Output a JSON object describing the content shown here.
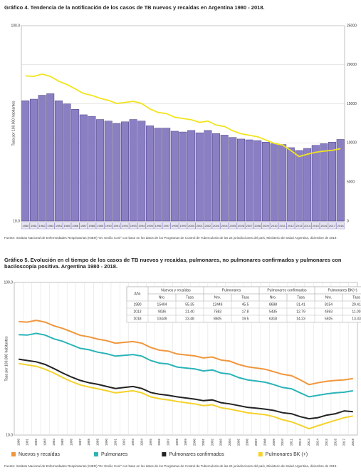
{
  "chart_data": [
    {
      "type": "bar",
      "title": "Gráfico 4. Tendencia de la notificación de los casos de TB nuevos y recaídas en Argentina 1980 - 2018.",
      "ylabel": "Tasa por 100.000 habitantes",
      "categories": [
        "1980",
        "1981",
        "1982",
        "1983",
        "1984",
        "1985",
        "1986",
        "1987",
        "1988",
        "1989",
        "1990",
        "1991",
        "1992",
        "1993",
        "1994",
        "1995",
        "1996",
        "1997",
        "1998",
        "1999",
        "2000",
        "2001",
        "2002",
        "2003",
        "2004",
        "2005",
        "2006",
        "2007",
        "2008",
        "2009",
        "2010",
        "2011",
        "2012",
        "2013",
        "2014",
        "2015",
        "2016",
        "2017",
        "2018"
      ],
      "ylim": [
        10,
        100
      ],
      "ylog": true,
      "yticks": [
        {
          "value": 10,
          "label": "10.0"
        },
        {
          "value": 100,
          "label": "100.0"
        }
      ],
      "y2lim": [
        0,
        25000
      ],
      "y2ticks": [
        0,
        5000,
        10000,
        15000,
        20000,
        25000
      ],
      "grid": true,
      "series": [
        {
          "type": "bar",
          "axis": "y2",
          "color": "#8b7fc4",
          "values": [
            15404,
            15600,
            16100,
            16300,
            15400,
            15000,
            14300,
            13600,
            13400,
            13000,
            12800,
            12500,
            12700,
            13000,
            12800,
            12200,
            11900,
            11900,
            11500,
            11400,
            11600,
            11300,
            11600,
            11200,
            11000,
            10700,
            10500,
            10400,
            10300,
            10100,
            9900,
            9800,
            9400,
            9036,
            9300,
            9700,
            9900,
            10100,
            10449
          ]
        },
        {
          "type": "line",
          "color": "#f2e41d",
          "values": [
            55.35,
            55.0,
            56.5,
            55.0,
            52.0,
            50.0,
            47.5,
            45.0,
            44.0,
            42.5,
            41.5,
            40.0,
            40.5,
            41.0,
            40.0,
            37.5,
            36.0,
            35.5,
            34.0,
            33.5,
            33.0,
            32.0,
            32.5,
            31.0,
            30.5,
            29.0,
            28.0,
            27.5,
            27.0,
            26.0,
            25.0,
            24.5,
            23.0,
            21.4,
            22.0,
            22.5,
            22.8,
            23.0,
            23.48
          ]
        }
      ],
      "source": "Fuente: Instituto Nacional de Enfermedades Respiratorias (INER) \"Dr. Emilio Coni\" con base en los datos de los Programas de Control de Tuberculosis de las 24 jurisdicciones del país, Ministerio de Salud Argentina, diciembre de 2019."
    },
    {
      "type": "line",
      "title": "Gráfico 5. Evolución en el tiempo de los casos de TB nuevos y recaídas, pulmonares, no pulmonares confirmados y pulmonares con baciloscopía positiva. Argentina 1980 - 2018.",
      "ylabel": "Tasa por 100.000 habitantes",
      "categories": [
        "1980",
        "1981",
        "1982",
        "1983",
        "1984",
        "1985",
        "1986",
        "1987",
        "1988",
        "1989",
        "1990",
        "1991",
        "1992",
        "1993",
        "1994",
        "1995",
        "1996",
        "1997",
        "1998",
        "1999",
        "2000",
        "2001",
        "2002",
        "2003",
        "2004",
        "2005",
        "2006",
        "2007",
        "2008",
        "2009",
        "2010",
        "2011",
        "2012",
        "2013",
        "2014",
        "2015",
        "2016",
        "2017",
        "2018"
      ],
      "ylim": [
        10,
        100
      ],
      "ylog": true,
      "yticks": [
        {
          "value": 10,
          "label": "10.0"
        },
        {
          "value": 100,
          "label": "100.0"
        }
      ],
      "grid": true,
      "legend": "bottom",
      "series": [
        {
          "name": "Nuevos y recaídas",
          "color": "#f0963c",
          "values": [
            55.35,
            55.0,
            56.5,
            55.0,
            52.0,
            50.0,
            47.5,
            45.0,
            44.0,
            42.5,
            41.5,
            40.0,
            40.5,
            41.0,
            40.0,
            37.5,
            36.0,
            35.5,
            34.0,
            33.5,
            33.0,
            32.0,
            32.5,
            31.0,
            30.5,
            29.0,
            28.0,
            27.5,
            27.0,
            26.0,
            25.0,
            24.5,
            23.0,
            21.4,
            22.0,
            22.5,
            22.8,
            23.0,
            23.48
          ]
        },
        {
          "name": "Pulmonares",
          "color": "#2ab3b8",
          "values": [
            45.5,
            45.2,
            46.4,
            45.2,
            42.7,
            41.1,
            39.0,
            37.0,
            36.2,
            34.9,
            34.1,
            32.9,
            33.3,
            33.7,
            32.9,
            30.8,
            29.6,
            29.2,
            27.9,
            27.5,
            27.1,
            26.3,
            26.7,
            25.5,
            25.1,
            23.8,
            23.0,
            22.6,
            22.2,
            21.4,
            20.5,
            20.1,
            18.9,
            17.8,
            18.2,
            18.6,
            18.9,
            19.1,
            19.5
          ]
        },
        {
          "name": "Pulmonares confirmados",
          "color": "#222222",
          "values": [
            31.41,
            30.8,
            30.2,
            29.0,
            27.3,
            25.5,
            24.0,
            22.8,
            22.0,
            21.5,
            20.8,
            20.2,
            20.5,
            20.8,
            20.2,
            19.0,
            18.5,
            18.2,
            17.8,
            17.5,
            17.2,
            16.8,
            17.0,
            16.3,
            16.0,
            15.6,
            15.2,
            15.0,
            14.8,
            14.5,
            14.0,
            13.8,
            13.2,
            12.79,
            13.0,
            13.5,
            13.8,
            14.4,
            14.23
          ]
        },
        {
          "name": "Pulmonares BK (+)",
          "color": "#f5d22a",
          "values": [
            29.41,
            28.8,
            28.2,
            27.0,
            25.5,
            23.8,
            22.4,
            21.3,
            20.6,
            20.1,
            19.5,
            18.9,
            19.2,
            19.5,
            18.9,
            17.8,
            17.3,
            17.0,
            16.6,
            16.3,
            16.0,
            15.6,
            15.8,
            15.1,
            14.8,
            14.4,
            14.0,
            13.8,
            13.6,
            13.2,
            12.6,
            12.2,
            11.6,
            11.0,
            11.5,
            12.0,
            12.5,
            13.0,
            13.33
          ]
        }
      ],
      "table": {
        "groups": [
          "Año",
          "Nuevos y recaídas",
          "Pulmonares",
          "Pulmonares confirmados",
          "Pulmonares BK(+)"
        ],
        "subheaders": [
          "Nro.",
          "Tasa",
          "Nro.",
          "Tasa",
          "Nro.",
          "Tasa",
          "Nro.",
          "Tasa"
        ],
        "rows": [
          [
            "1980",
            "15404",
            "55.35",
            "12449",
            "45.5",
            "8698",
            "31.41",
            "8154",
            "29.41"
          ],
          [
            "2013",
            "9036",
            "21.40",
            "7583",
            "17.8",
            "5435",
            "12.79",
            "4593",
            "11.00"
          ],
          [
            "2018",
            "10449",
            "23.48",
            "8605",
            "19.5",
            "6318",
            "14.23",
            "5925",
            "13.33"
          ]
        ]
      },
      "source": "Fuente: Instituto Nacional de Enfermedades Respiratorias (INER) \"Dr. Emilio Coni\" con base en los datos de los Programas de Control de Tuberculosis de las 24 jurisdicciones del país, Ministerio de Salud Argentina, diciembre de 2019."
    }
  ]
}
